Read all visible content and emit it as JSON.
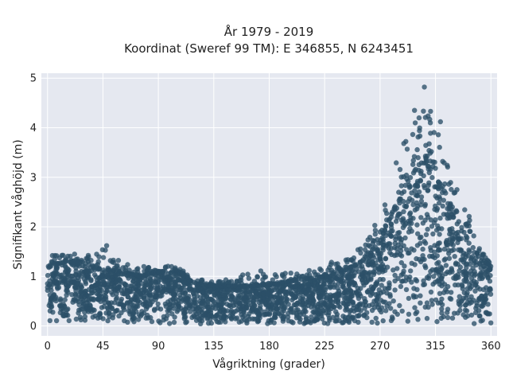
{
  "chart_data": {
    "type": "scatter",
    "title": "År 1979 - 2019",
    "subtitle": "Koordinat (Sweref 99 TM): E 346855, N 6243451",
    "xlabel": "Vågriktning (grader)",
    "ylabel": "Signifikant våghöjd (m)",
    "xlim": [
      -5,
      365
    ],
    "ylim": [
      -0.2,
      5.1
    ],
    "xticks": [
      "0",
      "45",
      "90",
      "135",
      "180",
      "225",
      "270",
      "315",
      "360"
    ],
    "yticks": [
      "0",
      "1",
      "2",
      "3",
      "4",
      "5"
    ],
    "grid": true,
    "marker_color": "#2c5068",
    "background_color": "#e5e8f0",
    "envelope": {
      "direction_deg": [
        0,
        15,
        30,
        45,
        60,
        75,
        90,
        105,
        120,
        135,
        150,
        165,
        180,
        195,
        210,
        225,
        240,
        255,
        270,
        280,
        290,
        300,
        305,
        310,
        320,
        330,
        340,
        350,
        360
      ],
      "dense_max_m": [
        1.2,
        1.3,
        1.2,
        1.15,
        1.1,
        1.0,
        1.1,
        1.1,
        0.85,
        0.8,
        0.8,
        0.8,
        0.85,
        0.9,
        0.95,
        1.0,
        1.1,
        1.3,
        1.7,
        2.3,
        2.8,
        3.2,
        3.3,
        3.2,
        2.8,
        2.3,
        1.8,
        1.4,
        1.2
      ],
      "outlier_max_m": [
        1.45,
        1.45,
        1.4,
        1.6,
        1.3,
        1.2,
        1.25,
        1.2,
        0.95,
        0.9,
        0.95,
        1.1,
        1.15,
        1.15,
        1.1,
        1.3,
        1.3,
        1.6,
        2.3,
        3.1,
        3.9,
        4.35,
        4.82,
        4.35,
        3.7,
        3.3,
        2.4,
        1.6,
        1.3
      ]
    },
    "notable_points": [
      {
        "x": 306,
        "y": 4.82
      },
      {
        "x": 298,
        "y": 4.35
      },
      {
        "x": 311,
        "y": 4.33
      },
      {
        "x": 319,
        "y": 4.12
      },
      {
        "x": 48,
        "y": 1.62
      },
      {
        "x": 4,
        "y": 1.42
      },
      {
        "x": 22,
        "y": 1.45
      }
    ]
  }
}
